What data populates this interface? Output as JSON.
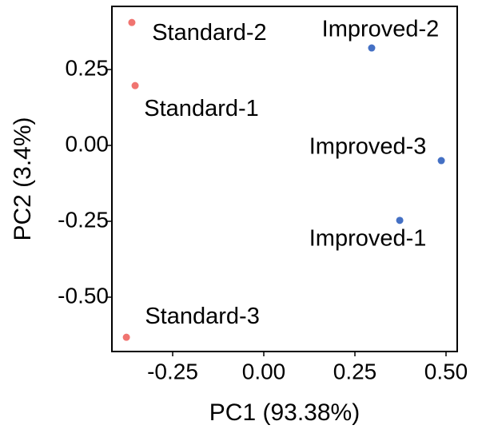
{
  "chart_data": {
    "type": "scatter",
    "xlabel": "PC1 (93.38%)",
    "ylabel": "PC2 (3.4%)",
    "xlim": [
      -0.4167,
      0.5307
    ],
    "ylim": [
      -0.679,
      0.458
    ],
    "xticks": [
      {
        "value": -0.25,
        "label": "-0.25"
      },
      {
        "value": 0,
        "label": "0.00"
      },
      {
        "value": 0.25,
        "label": "0.25"
      },
      {
        "value": 0.5,
        "label": "0.50"
      }
    ],
    "yticks": [
      {
        "value": -0.5,
        "label": "-0.50"
      },
      {
        "value": -0.25,
        "label": "-0.25"
      },
      {
        "value": 0,
        "label": "0.00"
      },
      {
        "value": 0.25,
        "label": "0.25"
      }
    ],
    "grid": false,
    "points": [
      {
        "label": "Standard-1",
        "x": -0.353,
        "y": 0.197,
        "color": "#f07470"
      },
      {
        "label": "Standard-2",
        "x": -0.362,
        "y": 0.405,
        "color": "#f07470"
      },
      {
        "label": "Standard-3",
        "x": -0.377,
        "y": -0.632,
        "color": "#f07470"
      },
      {
        "label": "Improved-1",
        "x": 0.373,
        "y": -0.247,
        "color": "#4470c4"
      },
      {
        "label": "Improved-2",
        "x": 0.296,
        "y": 0.321,
        "color": "#4470c4"
      },
      {
        "label": "Improved-3",
        "x": 0.487,
        "y": -0.05,
        "color": "#4470c4"
      }
    ]
  }
}
